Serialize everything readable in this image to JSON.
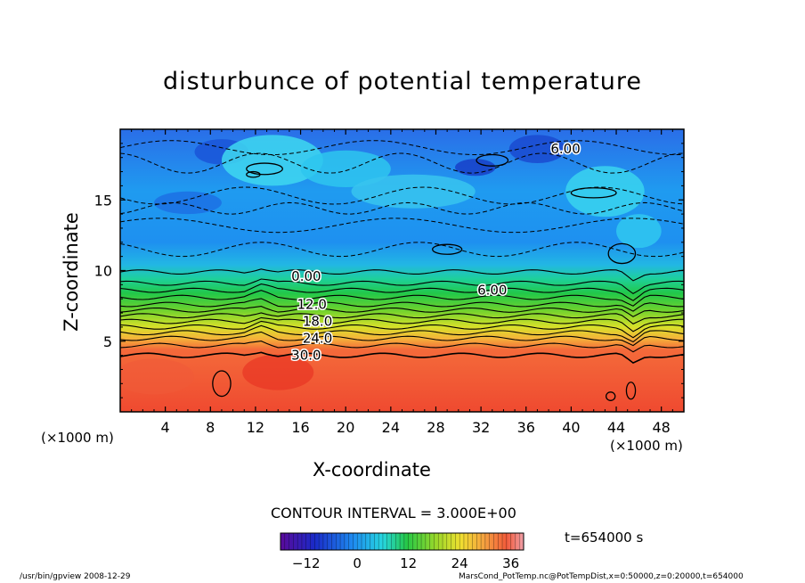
{
  "chart_data": {
    "type": "heatmap",
    "title": "disturbunce of potential temperature",
    "xlabel": "X-coordinate",
    "ylabel": "Z-coordinate",
    "x_unit_left": "(×1000 m)",
    "x_unit_right": "(×1000 m)",
    "xlim": [
      0,
      50
    ],
    "ylim": [
      0,
      20
    ],
    "x_ticks": [
      4,
      8,
      12,
      16,
      20,
      24,
      28,
      32,
      36,
      40,
      44,
      48
    ],
    "y_ticks": [
      5,
      10,
      15
    ],
    "contour_labels": [
      {
        "text": "6.00",
        "x": 39.5,
        "z": 18.6
      },
      {
        "text": "0.00",
        "x": 16.5,
        "z": 9.6
      },
      {
        "text": "6.00",
        "x": 33.0,
        "z": 8.6
      },
      {
        "text": "12.0",
        "x": 17.0,
        "z": 7.6
      },
      {
        "text": "18.0",
        "x": 17.5,
        "z": 6.4
      },
      {
        "text": "24.0",
        "x": 17.5,
        "z": 5.2
      },
      {
        "text": "30.0",
        "x": 16.5,
        "z": 4.0
      }
    ],
    "contour_interval_text": "CONTOUR INTERVAL = 3.000E+00",
    "colorbar": {
      "ticks": [
        -12,
        0,
        12,
        24,
        36
      ],
      "min": -18,
      "max": 39
    },
    "time_text": "t=654000 s"
  },
  "footer": {
    "left": "/usr/bin/gpview   2008-12-29",
    "right": "MarsCond_PotTemp.nc@PotTempDist,x=0:50000,z=0:20000,t=654000"
  }
}
